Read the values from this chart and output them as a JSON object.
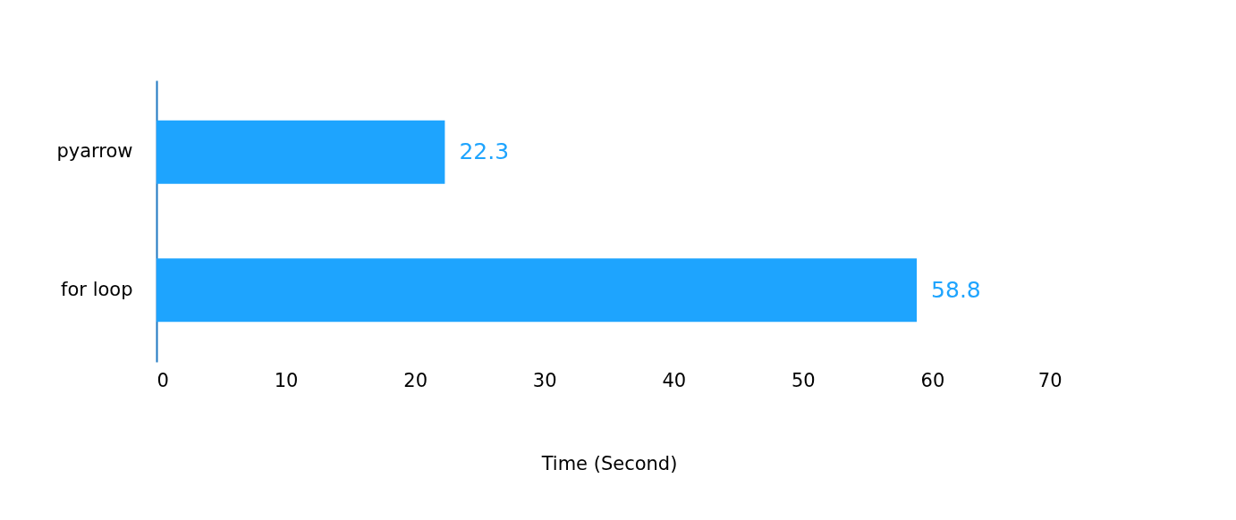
{
  "chart_data": {
    "type": "bar",
    "orientation": "horizontal",
    "categories": [
      "pyarrow",
      "for loop"
    ],
    "values": [
      22.3,
      58.8
    ],
    "color": "#1ea4fe",
    "xlim": [
      0,
      70
    ],
    "xticks": [
      0,
      10,
      20,
      30,
      40,
      50,
      60,
      70
    ],
    "xlabel": "Time (Second)",
    "data_labels": true
  }
}
